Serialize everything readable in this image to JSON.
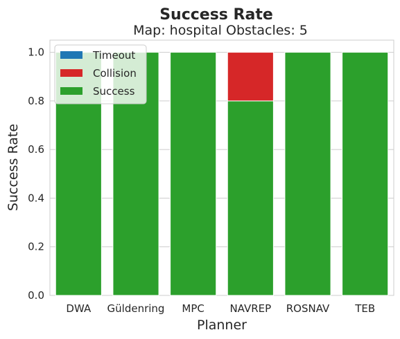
{
  "chart_data": {
    "type": "bar",
    "stacked": true,
    "title": "Success Rate",
    "subtitle": "Map: hospital Obstacles: 5",
    "xlabel": "Planner",
    "ylabel": "Success Rate",
    "categories": [
      "DWA",
      "Güldenring",
      "MPC",
      "NAVREP",
      "ROSNAV",
      "TEB"
    ],
    "ylim": [
      0,
      1.05
    ],
    "yticks": [
      "0.0",
      "0.2",
      "0.4",
      "0.6",
      "0.8",
      "1.0"
    ],
    "series": [
      {
        "name": "Timeout",
        "color": "#1f77b4",
        "values": [
          0,
          0,
          0,
          0,
          0,
          0
        ]
      },
      {
        "name": "Collision",
        "color": "#d62728",
        "values": [
          0,
          0,
          0,
          0.2,
          0,
          0
        ]
      },
      {
        "name": "Success",
        "color": "#2ca02c",
        "values": [
          1.0,
          1.0,
          1.0,
          0.8,
          1.0,
          1.0
        ]
      }
    ],
    "grid": "horizontal",
    "legend_position": "top-left"
  }
}
